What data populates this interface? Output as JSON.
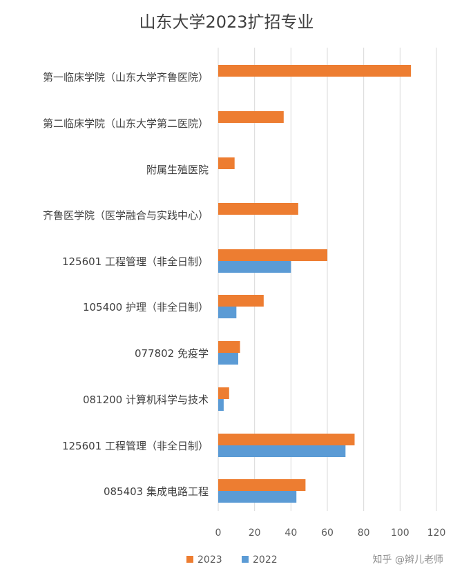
{
  "chart_data": {
    "type": "bar",
    "orientation": "horizontal",
    "title": "山东大学2023扩招专业",
    "categories": [
      "第一临床学院（山东大学齐鲁医院）",
      "第二临床学院（山东大学第二医院）",
      "附属生殖医院",
      "齐鲁医学院（医学融合与实践中心）",
      "125601 工程管理（非全日制）",
      "105400 护理（非全日制）",
      "077802 免疫学",
      "081200 计算机科学与技术",
      "125601 工程管理（非全日制）",
      "085403 集成电路工程"
    ],
    "series": [
      {
        "name": "2023",
        "color": "#ED7D31",
        "values": [
          106,
          36,
          9,
          44,
          60,
          25,
          12,
          6,
          75,
          48
        ]
      },
      {
        "name": "2022",
        "color": "#5B9BD5",
        "values": [
          null,
          null,
          null,
          null,
          40,
          10,
          11,
          3,
          70,
          43
        ]
      }
    ],
    "xlim": [
      0,
      120
    ],
    "xticks": [
      0,
      20,
      40,
      60,
      80,
      100,
      120
    ],
    "grid": "vertical",
    "legend_position": "bottom-left"
  },
  "watermark": "知乎 @辫儿老师"
}
